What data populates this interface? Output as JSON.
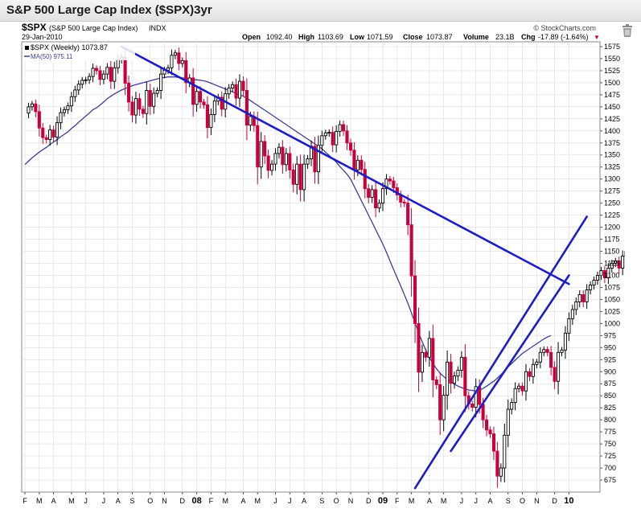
{
  "page": {
    "title": "S&P 500 Large Cap Index ($SPX)3yr"
  },
  "header": {
    "symbol": "$SPX",
    "name": "(S&P 500 Large Cap Index)",
    "exchange": "INDX",
    "date": "29-Jan-2010",
    "watermark": "© StockCharts.com",
    "open_label": "Open",
    "open": "1092.40",
    "high_label": "High",
    "high": "1103.69",
    "low_label": "Low",
    "low": "1071.59",
    "close_label": "Close",
    "close": "1073.87",
    "volume_label": "Volume",
    "volume": "23.1B",
    "chg_label": "Chg",
    "chg": "-17.89 (-1.64%)",
    "chg_arrow": "▼"
  },
  "legend": {
    "series_label": "$SPX (Weekly) 1073.87",
    "ma_label": "MA(50) 975.11"
  },
  "colors": {
    "up": "#000000",
    "down": "#c8003c",
    "trendline": "#1c1cc8",
    "ma": "#3c3c96",
    "grid": "#dcdcdc"
  },
  "chart_data": {
    "type": "candlestick",
    "title": "S&P 500 Large Cap Index ($SPX)3yr",
    "ylim": [
      650,
      1585
    ],
    "y_ticks": [
      675,
      700,
      725,
      750,
      775,
      800,
      825,
      850,
      875,
      900,
      925,
      950,
      975,
      1000,
      1025,
      1050,
      1075,
      1100,
      1125,
      1150,
      1175,
      1200,
      1225,
      1250,
      1275,
      1300,
      1325,
      1350,
      1375,
      1400,
      1425,
      1450,
      1475,
      1500,
      1525,
      1550,
      1575
    ],
    "x_ticks": [
      {
        "label": "F",
        "w": 0
      },
      {
        "label": "M",
        "w": 4
      },
      {
        "label": "A",
        "w": 8
      },
      {
        "label": "M",
        "w": 13
      },
      {
        "label": "J",
        "w": 17
      },
      {
        "label": "J",
        "w": 22
      },
      {
        "label": "A",
        "w": 26
      },
      {
        "label": "S",
        "w": 30
      },
      {
        "label": "O",
        "w": 35
      },
      {
        "label": "N",
        "w": 39
      },
      {
        "label": "D",
        "w": 44
      },
      {
        "label": "08",
        "w": 48,
        "bold": true
      },
      {
        "label": "F",
        "w": 52
      },
      {
        "label": "M",
        "w": 56
      },
      {
        "label": "A",
        "w": 61
      },
      {
        "label": "M",
        "w": 65
      },
      {
        "label": "J",
        "w": 70
      },
      {
        "label": "J",
        "w": 74
      },
      {
        "label": "A",
        "w": 78
      },
      {
        "label": "S",
        "w": 83
      },
      {
        "label": "O",
        "w": 87
      },
      {
        "label": "N",
        "w": 91
      },
      {
        "label": "D",
        "w": 96
      },
      {
        "label": "09",
        "w": 100,
        "bold": true
      },
      {
        "label": "F",
        "w": 104
      },
      {
        "label": "M",
        "w": 108
      },
      {
        "label": "A",
        "w": 113
      },
      {
        "label": "M",
        "w": 117
      },
      {
        "label": "J",
        "w": 122
      },
      {
        "label": "J",
        "w": 126
      },
      {
        "label": "A",
        "w": 130
      },
      {
        "label": "S",
        "w": 135
      },
      {
        "label": "O",
        "w": 139
      },
      {
        "label": "N",
        "w": 143
      },
      {
        "label": "D",
        "w": 148
      },
      {
        "label": "10",
        "w": 152,
        "bold": true
      }
    ],
    "weekly_close": [
      1437,
      1450,
      1456,
      1440,
      1406,
      1386,
      1382,
      1402,
      1387,
      1417,
      1438,
      1444,
      1452,
      1471,
      1485,
      1497,
      1505,
      1506,
      1513,
      1530,
      1525,
      1507,
      1518,
      1532,
      1503,
      1531,
      1548,
      1553,
      1499,
      1460,
      1433,
      1467,
      1445,
      1436,
      1484,
      1451,
      1478,
      1484,
      1518,
      1526,
      1531,
      1557,
      1562,
      1540,
      1546,
      1500,
      1510,
      1455,
      1482,
      1460,
      1454,
      1407,
      1434,
      1462,
      1470,
      1445,
      1477,
      1489,
      1496,
      1468,
      1503,
      1484,
      1412,
      1430,
      1411,
      1325,
      1378,
      1348,
      1318,
      1331,
      1353,
      1366,
      1330,
      1353,
      1319,
      1289,
      1331,
      1278,
      1331,
      1342,
      1368,
      1315,
      1370,
      1390,
      1396,
      1397,
      1371,
      1399,
      1413,
      1400,
      1375,
      1360,
      1319,
      1339,
      1320,
      1280,
      1262,
      1278,
      1240,
      1250,
      1280,
      1300,
      1296,
      1282,
      1267,
      1252,
      1250,
      1205,
      1099,
      1000,
      899,
      940,
      930,
      969,
      883,
      873,
      800,
      851,
      920,
      876,
      891,
      903,
      930,
      850,
      833,
      826,
      869,
      832,
      800,
      779,
      771,
      735,
      683,
      700,
      768,
      822,
      836,
      865,
      870,
      860,
      900,
      890,
      915,
      920,
      940,
      946,
      940,
      909,
      880,
      940,
      945,
      980,
      1010,
      1029,
      1045,
      1060,
      1045,
      1070,
      1080,
      1090,
      1100,
      1110,
      1095,
      1115,
      1125,
      1130,
      1115,
      1140,
      1150,
      1136,
      1116,
      1092,
      1074
    ],
    "ma50": [
      1330,
      1337,
      1344,
      1350,
      1356,
      1361,
      1366,
      1372,
      1377,
      1382,
      1388,
      1393,
      1398,
      1405,
      1411,
      1418,
      1424,
      1431,
      1437,
      1444,
      1448,
      1454,
      1460,
      1467,
      1472,
      1477,
      1481,
      1485,
      1488,
      1491,
      1494,
      1496,
      1498,
      1500,
      1502,
      1504,
      1506,
      1508,
      1510,
      1511,
      1512,
      1512,
      1512,
      1511,
      1510,
      1509,
      1508,
      1507,
      1506,
      1505,
      1504,
      1502,
      1499,
      1496,
      1493,
      1490,
      1487,
      1484,
      1481,
      1478,
      1475,
      1472,
      1468,
      1463,
      1458,
      1453,
      1448,
      1443,
      1438,
      1433,
      1428,
      1423,
      1418,
      1413,
      1408,
      1403,
      1398,
      1393,
      1388,
      1383,
      1378,
      1373,
      1368,
      1363,
      1356,
      1349,
      1342,
      1335,
      1326,
      1318,
      1310,
      1300,
      1285,
      1270,
      1255,
      1240,
      1225,
      1210,
      1195,
      1180,
      1165,
      1148,
      1130,
      1112,
      1095,
      1078,
      1060,
      1042,
      1022,
      1001,
      981,
      962,
      945,
      930,
      917,
      906,
      897,
      890,
      884,
      879,
      874,
      870,
      867,
      864,
      862,
      861,
      860,
      862,
      865,
      870,
      875,
      880,
      887,
      894,
      902,
      910,
      917,
      924,
      931,
      938,
      943,
      948,
      953,
      958,
      963,
      968,
      972,
      975
    ]
  },
  "trendlines": [
    {
      "from": [
        27,
        1575
      ],
      "to": [
        152,
        1082
      ]
    },
    {
      "from": [
        109,
        658
      ],
      "to": [
        157,
        1222
      ]
    },
    {
      "from": [
        119,
        735
      ],
      "to": [
        152,
        1100
      ]
    }
  ]
}
